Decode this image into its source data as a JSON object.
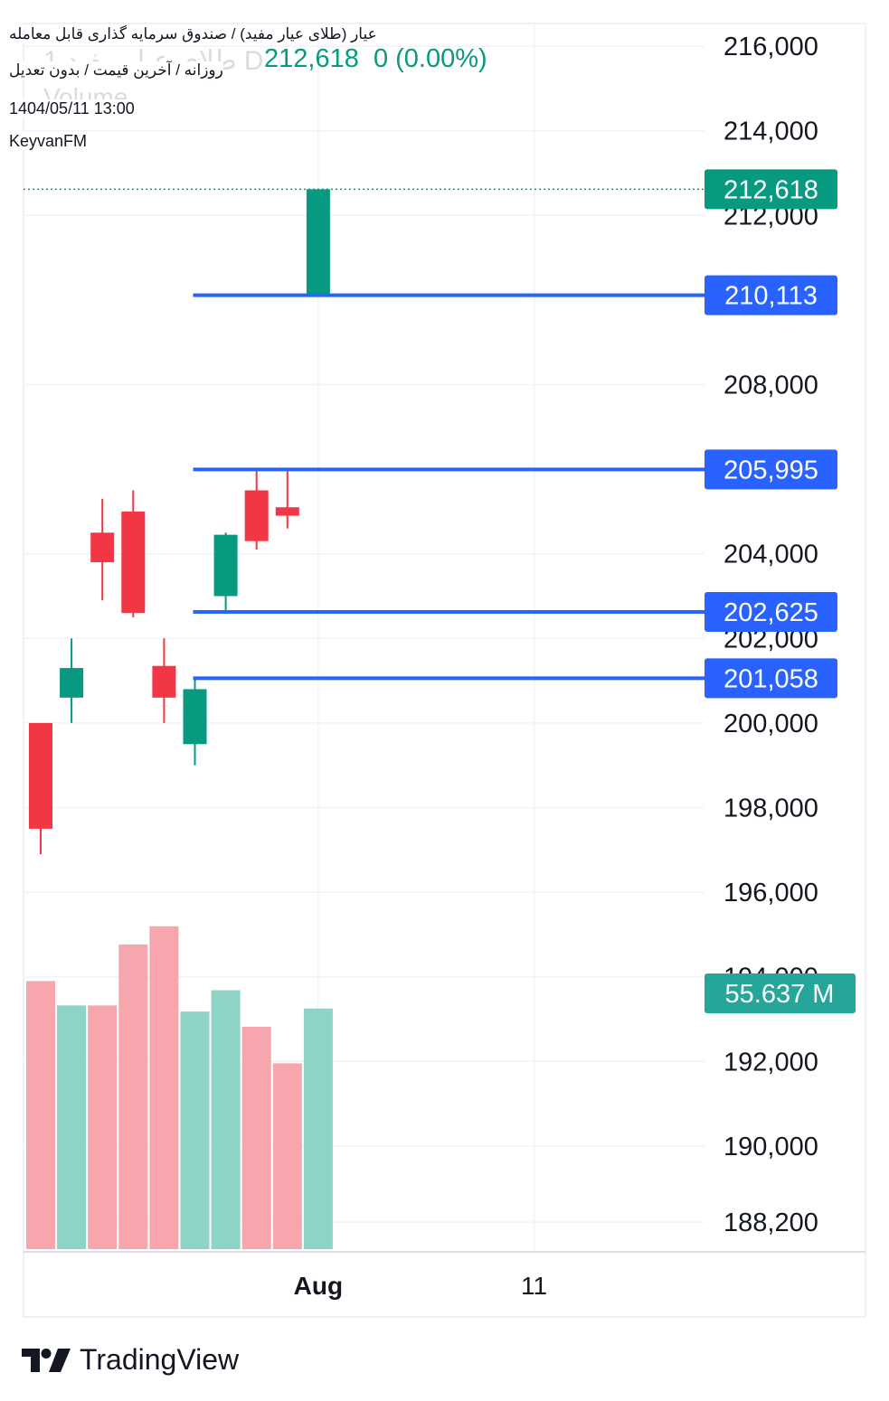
{
  "header": {
    "instrument": "عیار (طلای عیار مفید) / صندوق سرمایه گذاری قابل معامله",
    "settings": "روزانه / آخرین قیمت / بدون تعدیل",
    "datetime": "1404/05/11 13:00",
    "author": "KeyvanFM",
    "ghost_title": "1 طلای عیار مفید D",
    "ghost_volume": "Volume",
    "legend_price": "212,618",
    "legend_change": "0 (0.00%)"
  },
  "brand": {
    "name": "TradingView",
    "icon": "tradingview-logo-icon"
  },
  "colors": {
    "up": "#089981",
    "down": "#f23645",
    "level": "#2962ff",
    "vol_up": "#8fd3c6",
    "vol_down": "#f7a6ad",
    "grid": "#f0f3fa"
  },
  "chart_data": {
    "type": "candlestick",
    "y_axis": {
      "ticks": [
        216000,
        214000,
        212000,
        208000,
        204000,
        202000,
        200000,
        198000,
        196000,
        194000,
        192000,
        190000,
        188200
      ]
    },
    "x_axis": {
      "ticks": [
        {
          "label": "Aug",
          "index": 9,
          "bold": true
        },
        {
          "label": "11",
          "index": 16,
          "bold": false
        }
      ]
    },
    "candles": [
      {
        "open": 200000,
        "high": 200000,
        "low": 196900,
        "close": 197500
      },
      {
        "open": 200600,
        "high": 202000,
        "low": 200000,
        "close": 201300
      },
      {
        "open": 204500,
        "high": 205300,
        "low": 202900,
        "close": 203800
      },
      {
        "open": 205000,
        "high": 205500,
        "low": 202500,
        "close": 202600
      },
      {
        "open": 201350,
        "high": 202000,
        "low": 200000,
        "close": 200600
      },
      {
        "open": 199500,
        "high": 201100,
        "low": 199000,
        "close": 200800
      },
      {
        "open": 203000,
        "high": 204500,
        "low": 202600,
        "close": 204450
      },
      {
        "open": 205500,
        "high": 206000,
        "low": 204100,
        "close": 204300
      },
      {
        "open": 205100,
        "high": 206000,
        "low": 204600,
        "close": 204900
      },
      {
        "open": 210113,
        "high": 212618,
        "low": 210113,
        "close": 212618
      }
    ],
    "volume_scale": [
      0.88,
      0.8,
      0.8,
      1.0,
      1.06,
      0.78,
      0.85,
      0.73,
      0.61,
      0.79
    ],
    "volume_last_label": "55.637 M",
    "last_price": {
      "value": 212618,
      "label": "212,618"
    },
    "levels": [
      {
        "value": 210113,
        "label": "210,113",
        "from_index": 5
      },
      {
        "value": 205995,
        "label": "205,995",
        "from_index": 5
      },
      {
        "value": 202625,
        "label": "202,625",
        "from_index": 5
      },
      {
        "value": 201058,
        "label": "201,058",
        "from_index": 5
      }
    ]
  }
}
